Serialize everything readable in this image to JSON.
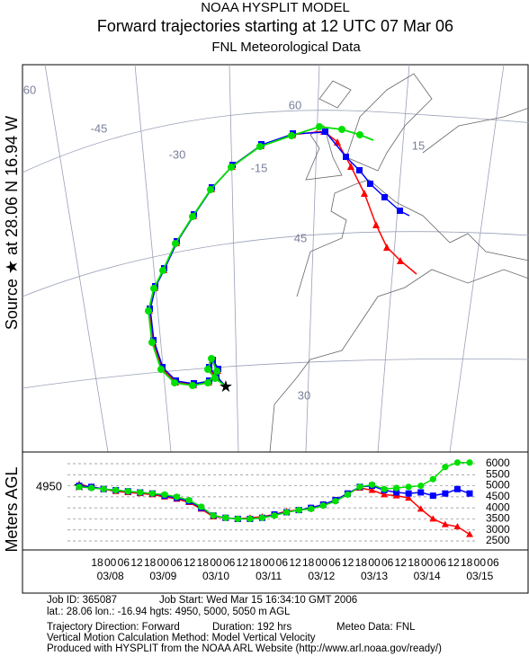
{
  "header": {
    "line1": "NOAA HYSPLIT MODEL",
    "line2": "Forward trajectories starting at 12 UTC 07 Mar 06",
    "line3": "FNL  Meteorological Data"
  },
  "map": {
    "source_label": "Source ★ at 28.06 N  16.94 W",
    "grid_labels": [
      "60",
      "-45",
      "-30",
      "60",
      "-15",
      "15",
      "45",
      "30"
    ]
  },
  "chart_data": {
    "type": "line",
    "ylabel": "Meters AGL",
    "source_height_label": "4950",
    "ylim": [
      2500,
      6000
    ],
    "yticks": [
      2500,
      3000,
      3500,
      4000,
      4500,
      5000,
      5500,
      6000
    ],
    "xtick_labels": [
      "18",
      "00",
      "06",
      "12",
      "18",
      "00",
      "06",
      "12",
      "18",
      "00",
      "06",
      "12",
      "18",
      "00",
      "06",
      "12",
      "18",
      "00",
      "06",
      "12",
      "18",
      "00",
      "06",
      "12",
      "18",
      "00",
      "06",
      "12",
      "18",
      "00",
      "06"
    ],
    "date_labels": [
      "03/08",
      "03/09",
      "03/10",
      "03/11",
      "03/12",
      "03/13",
      "03/14",
      "03/15"
    ],
    "series": [
      {
        "color": "#ff0000",
        "marker": "triangle",
        "values": [
          5050,
          4950,
          4850,
          4750,
          4700,
          4650,
          4600,
          4500,
          4400,
          4250,
          3950,
          3600,
          3550,
          3500,
          3550,
          3600,
          3700,
          3850,
          3900,
          4000,
          4150,
          4350,
          4650,
          4900,
          4800,
          4600,
          4550,
          4450,
          3950,
          3500,
          3250,
          3150,
          2800
        ]
      },
      {
        "color": "#0000ff",
        "marker": "square",
        "values": [
          5000,
          4950,
          4850,
          4800,
          4750,
          4700,
          4650,
          4550,
          4450,
          4300,
          4000,
          3650,
          3550,
          3500,
          3500,
          3550,
          3700,
          3800,
          3900,
          4000,
          4150,
          4350,
          4650,
          4950,
          5000,
          4800,
          4700,
          4650,
          4700,
          4550,
          4650,
          4850,
          4650
        ]
      },
      {
        "color": "#00e000",
        "marker": "circle",
        "values": [
          4950,
          4900,
          4850,
          4800,
          4750,
          4700,
          4650,
          4600,
          4500,
          4350,
          4050,
          3650,
          3550,
          3500,
          3500,
          3550,
          3650,
          3800,
          3900,
          3950,
          4100,
          4300,
          4600,
          4950,
          5050,
          4850,
          4900,
          4950,
          5000,
          5300,
          5850,
          6050,
          6050
        ]
      }
    ]
  },
  "footer": {
    "job_id": "Job ID: 365087",
    "job_start": "Job Start: Wed Mar 15 16:34:10 GMT 2006",
    "position": "lat.: 28.06  lon.: -16.94  hgts: 4950, 5000, 5050 m AGL",
    "direction": "Trajectory Direction: Forward",
    "duration": "Duration: 192 hrs",
    "meteo": "Meteo Data: FNL",
    "vertical": "Vertical Motion Calculation Method: Model Vertical Velocity",
    "produced": "Produced with HYSPLIT from the NOAA ARL Website (http://www.arl.noaa.gov/ready/)"
  }
}
